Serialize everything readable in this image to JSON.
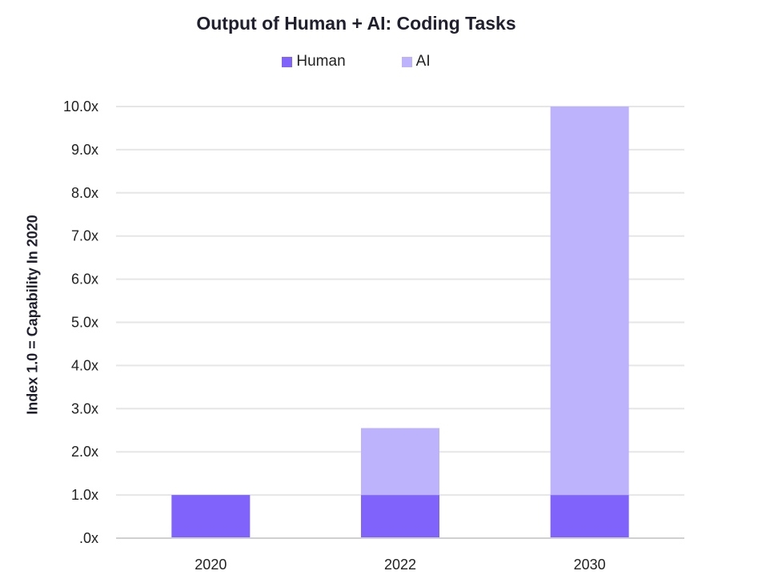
{
  "chart_data": {
    "type": "bar",
    "stacked": true,
    "title": "Output of Human + AI: Coding Tasks",
    "xlabel": "",
    "ylabel": "Index 1.0 = Capability In 2020",
    "categories": [
      "2020",
      "2022",
      "2030"
    ],
    "series": [
      {
        "name": "Human",
        "values": [
          1.0,
          1.0,
          1.0
        ],
        "color": "#7f63fb"
      },
      {
        "name": "AI",
        "values": [
          0.0,
          1.55,
          9.0
        ],
        "color": "#bdb3fd"
      }
    ],
    "ylim": [
      0,
      10
    ],
    "yticks": [
      0,
      1,
      2,
      3,
      4,
      5,
      6,
      7,
      8,
      9,
      10
    ],
    "ytick_labels": [
      ".0x",
      "1.0x",
      "2.0x",
      "3.0x",
      "4.0x",
      "5.0x",
      "6.0x",
      "7.0x",
      "8.0x",
      "9.0x",
      "10.0x"
    ],
    "grid": true,
    "legend_position": "top-center",
    "colors": {
      "grid": "#e6e6e6",
      "baseline": "#d0d0d0",
      "text": "#222222"
    }
  }
}
